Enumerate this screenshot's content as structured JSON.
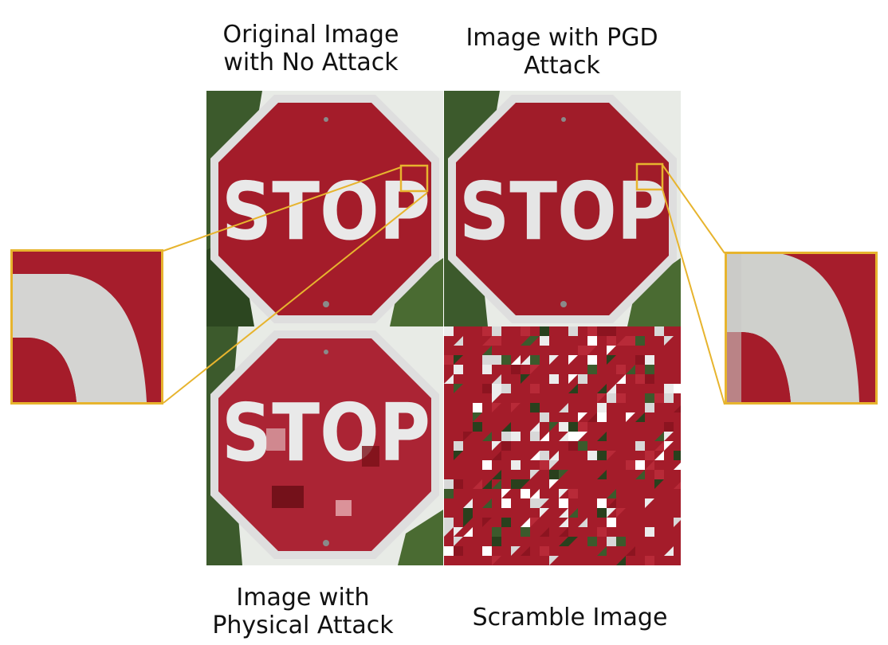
{
  "captions": {
    "original": "Original Image\nwith No Attack",
    "pgd": "Image with PGD\nAttack",
    "physical": "Image with\nPhysical Attack",
    "scramble": "Scramble Image"
  },
  "sign_text": "STOP",
  "colors": {
    "sign_red": "#a41c2a",
    "sign_red_dark": "#8c1420",
    "sign_border": "#d9d9d9",
    "foliage": "#3c5a2c",
    "highlight": "#e7b42e"
  }
}
